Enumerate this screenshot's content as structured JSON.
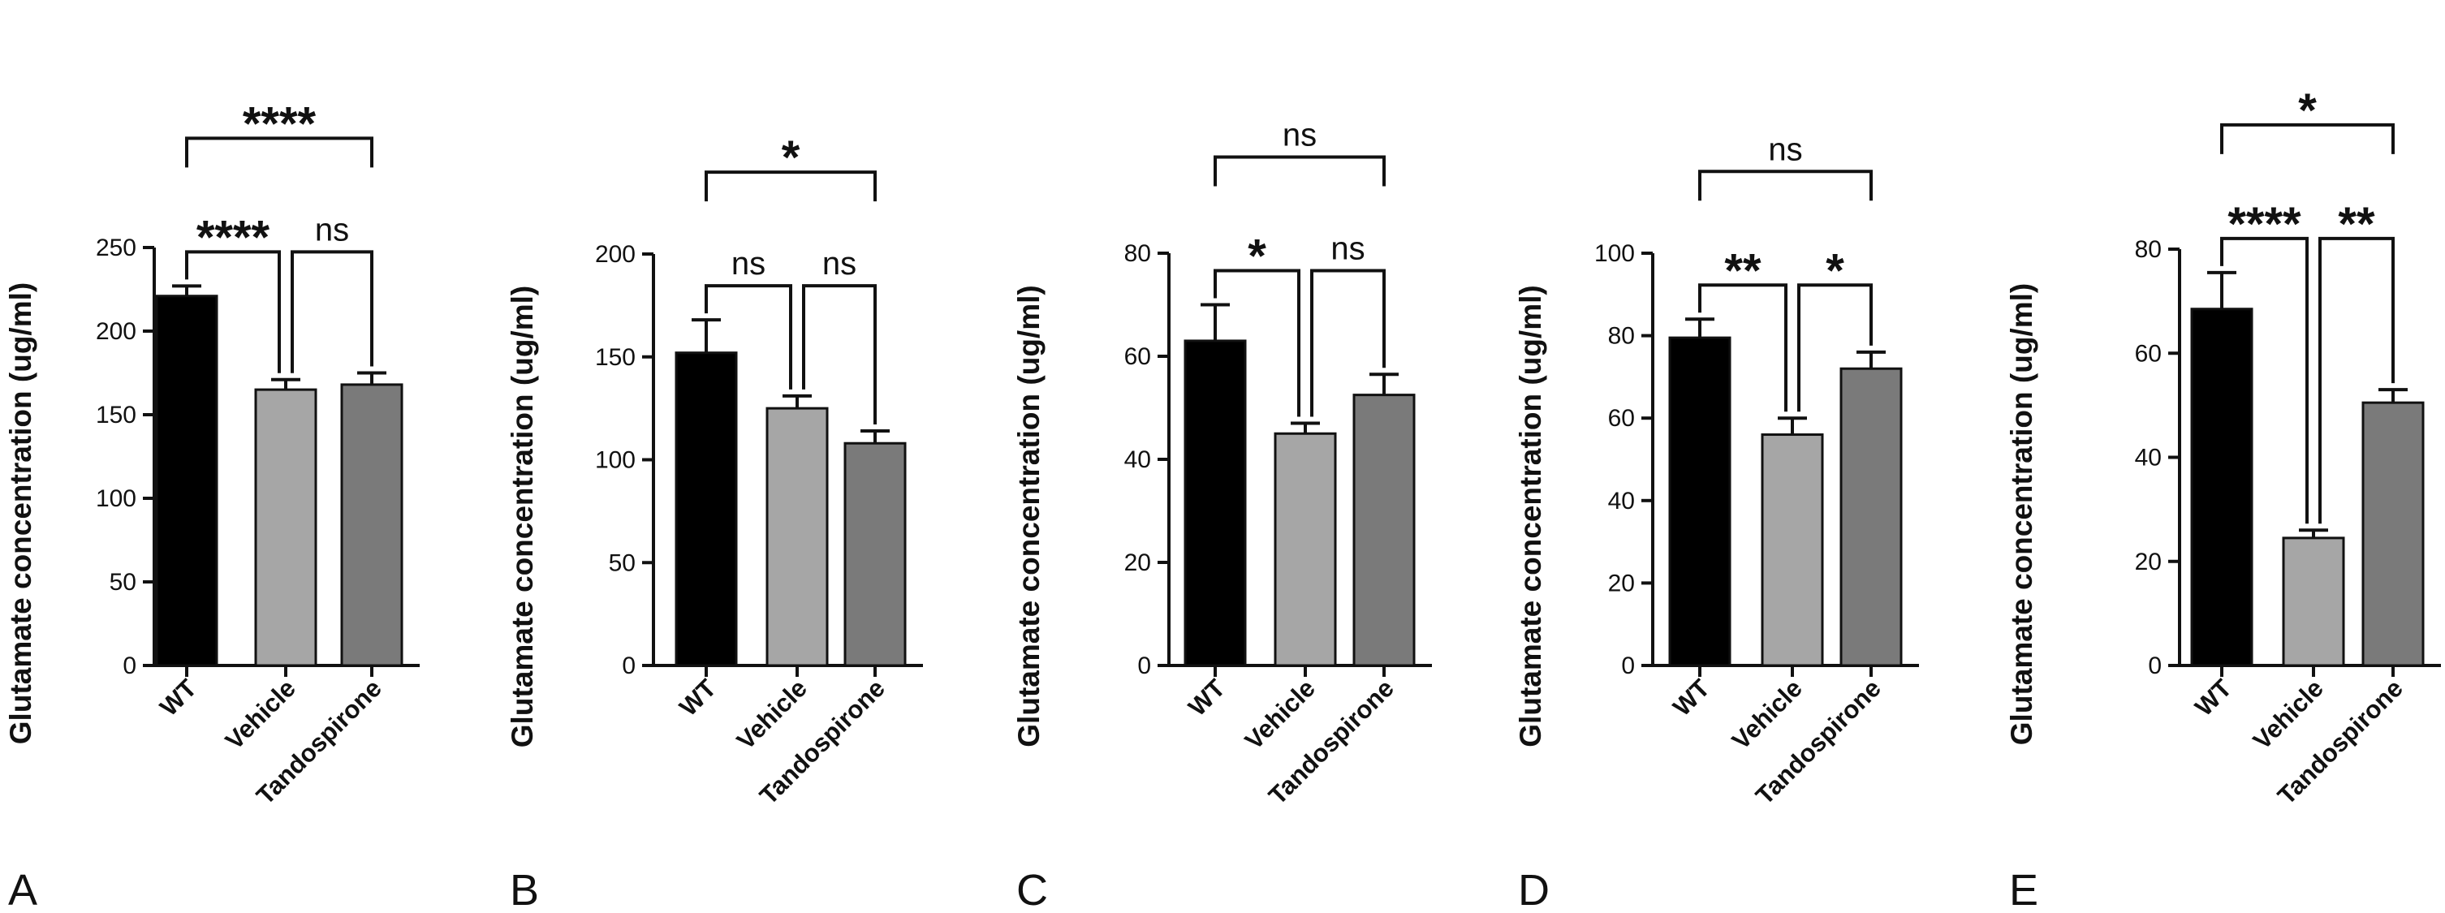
{
  "chart_data": [
    {
      "panel": "A",
      "type": "bar",
      "ylabel": "Glutamate concentration (ug/ml)",
      "categories": [
        "WT",
        "Vehicle",
        "Tandospirone"
      ],
      "values": [
        221,
        165,
        168
      ],
      "errors": [
        6,
        6,
        7
      ],
      "ylim": [
        0,
        250
      ],
      "yticks": [
        0,
        50,
        100,
        150,
        200,
        250
      ],
      "colors": [
        "#000000",
        "#a6a6a6",
        "#7a7a7a"
      ],
      "comparisons": [
        {
          "from": 0,
          "to": 1,
          "label": "****"
        },
        {
          "from": 1,
          "to": 2,
          "label": "ns"
        },
        {
          "from": 0,
          "to": 2,
          "label": "****"
        }
      ]
    },
    {
      "panel": "B",
      "type": "bar",
      "ylabel": "Glutamate concentration (ug/ml)",
      "categories": [
        "WT",
        "Vehicle",
        "Tandospirone"
      ],
      "values": [
        152,
        125,
        108
      ],
      "errors": [
        16,
        6,
        6
      ],
      "ylim": [
        0,
        200
      ],
      "yticks": [
        0,
        50,
        100,
        150,
        200
      ],
      "colors": [
        "#000000",
        "#a6a6a6",
        "#7a7a7a"
      ],
      "comparisons": [
        {
          "from": 0,
          "to": 1,
          "label": "ns"
        },
        {
          "from": 1,
          "to": 2,
          "label": "ns"
        },
        {
          "from": 0,
          "to": 2,
          "label": "*"
        }
      ]
    },
    {
      "panel": "C",
      "type": "bar",
      "ylabel": "Glutamate concentration (ug/ml)",
      "categories": [
        "WT",
        "Vehicle",
        "Tandospirone"
      ],
      "values": [
        63,
        45,
        52.5
      ],
      "errors": [
        7,
        2,
        4
      ],
      "ylim": [
        0,
        80
      ],
      "yticks": [
        0,
        20,
        40,
        60,
        80
      ],
      "colors": [
        "#000000",
        "#a6a6a6",
        "#7a7a7a"
      ],
      "comparisons": [
        {
          "from": 0,
          "to": 1,
          "label": "*"
        },
        {
          "from": 1,
          "to": 2,
          "label": "ns"
        },
        {
          "from": 0,
          "to": 2,
          "label": "ns"
        }
      ]
    },
    {
      "panel": "D",
      "type": "bar",
      "ylabel": "Glutamate concentration (ug/ml)",
      "categories": [
        "WT",
        "Vehicle",
        "Tandospirone"
      ],
      "values": [
        79.5,
        56,
        72
      ],
      "errors": [
        4.5,
        4,
        4
      ],
      "ylim": [
        0,
        100
      ],
      "yticks": [
        0,
        20,
        40,
        60,
        80,
        100
      ],
      "colors": [
        "#000000",
        "#a6a6a6",
        "#7a7a7a"
      ],
      "comparisons": [
        {
          "from": 0,
          "to": 1,
          "label": "**"
        },
        {
          "from": 1,
          "to": 2,
          "label": "*"
        },
        {
          "from": 0,
          "to": 2,
          "label": "ns"
        }
      ]
    },
    {
      "panel": "E",
      "type": "bar",
      "ylabel": "Glutamate concentration (ug/ml)",
      "categories": [
        "WT",
        "Vehicle",
        "Tandospirone"
      ],
      "values": [
        68.5,
        24.5,
        50.5
      ],
      "errors": [
        7,
        1.5,
        2.5
      ],
      "ylim": [
        0,
        80
      ],
      "yticks": [
        0,
        20,
        40,
        60,
        80
      ],
      "colors": [
        "#000000",
        "#a6a6a6",
        "#7a7a7a"
      ],
      "comparisons": [
        {
          "from": 0,
          "to": 1,
          "label": "****"
        },
        {
          "from": 1,
          "to": 2,
          "label": "**"
        },
        {
          "from": 0,
          "to": 2,
          "label": "*"
        }
      ]
    }
  ]
}
